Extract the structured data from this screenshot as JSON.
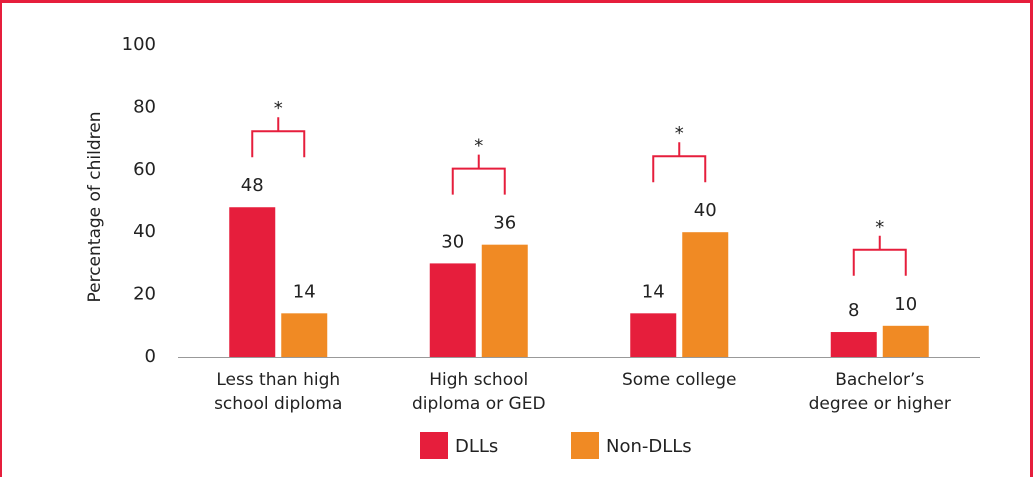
{
  "chart_data": {
    "type": "bar",
    "y_label": "Percentage of children",
    "categories": [
      "Less than high\nschool diploma",
      "High school\ndiploma or GED",
      "Some college",
      "Bachelor’s\ndegree or higher"
    ],
    "series": [
      {
        "name": "DLLs",
        "color": "#e61e3c",
        "values": [
          48,
          30,
          14,
          8
        ]
      },
      {
        "name": "Non-DLLs",
        "color": "#f08a24",
        "values": [
          14,
          36,
          40,
          10
        ]
      }
    ],
    "significance": [
      "*",
      "*",
      "*",
      "*"
    ],
    "ylim": [
      0,
      100
    ],
    "yticks": [
      0,
      20,
      40,
      60,
      80,
      100
    ],
    "grid": false
  }
}
